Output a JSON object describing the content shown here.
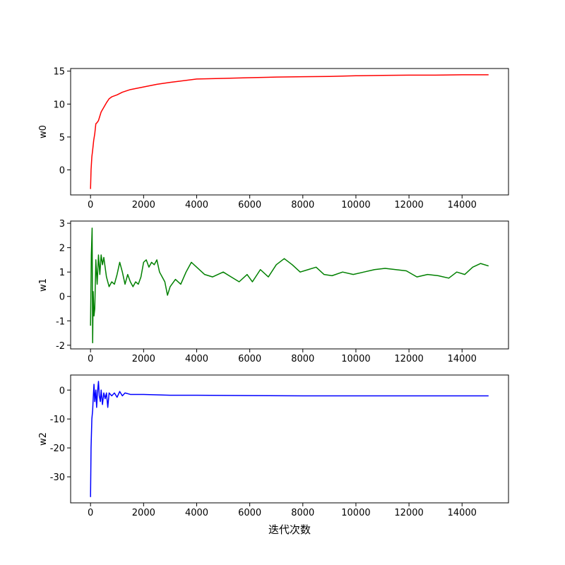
{
  "chart_data": [
    {
      "type": "line",
      "ylabel": "w0",
      "color": "#ff0000",
      "grid": false,
      "x": [
        0,
        20,
        50,
        80,
        120,
        160,
        200,
        250,
        300,
        400,
        500,
        600,
        700,
        800,
        1000,
        1200,
        1500,
        2000,
        2500,
        3000,
        4000,
        5000,
        6000,
        7000,
        8000,
        9000,
        10000,
        11000,
        12000,
        13000,
        14000,
        14999
      ],
      "values": [
        -2.9,
        0,
        2,
        3,
        4.5,
        5.5,
        7,
        7.2,
        7.5,
        8.8,
        9.5,
        10.2,
        10.8,
        11.1,
        11.4,
        11.8,
        12.2,
        12.6,
        13.0,
        13.3,
        13.8,
        13.9,
        14.0,
        14.1,
        14.15,
        14.2,
        14.3,
        14.35,
        14.4,
        14.4,
        14.45,
        14.45
      ],
      "xlim": [
        -750,
        15750
      ],
      "xticks": [
        0,
        2000,
        4000,
        6000,
        8000,
        10000,
        12000,
        14000
      ],
      "ylim": [
        -3.8,
        15.4
      ],
      "yticks": [
        0,
        5,
        10,
        15
      ]
    },
    {
      "type": "line",
      "ylabel": "w1",
      "color": "#008000",
      "grid": false,
      "x": [
        0,
        30,
        60,
        80,
        100,
        130,
        160,
        200,
        250,
        300,
        350,
        400,
        450,
        500,
        600,
        700,
        800,
        900,
        1000,
        1100,
        1200,
        1300,
        1400,
        1500,
        1600,
        1700,
        1800,
        1900,
        2000,
        2100,
        2200,
        2300,
        2400,
        2500,
        2600,
        2700,
        2800,
        2900,
        3000,
        3200,
        3400,
        3600,
        3800,
        4000,
        4300,
        4600,
        5000,
        5300,
        5600,
        5900,
        6100,
        6400,
        6700,
        7000,
        7300,
        7600,
        7900,
        8200,
        8500,
        8800,
        9100,
        9500,
        9900,
        10300,
        10700,
        11100,
        11500,
        11900,
        12300,
        12700,
        13100,
        13500,
        13800,
        14100,
        14400,
        14700,
        14999
      ],
      "values": [
        -1.2,
        1.7,
        2.8,
        -1.9,
        0.2,
        -0.8,
        -0.5,
        1.5,
        0.5,
        1.7,
        0.9,
        1.7,
        1.3,
        1.6,
        0.8,
        0.4,
        0.6,
        0.5,
        0.9,
        1.4,
        1.0,
        0.5,
        0.9,
        0.6,
        0.4,
        0.6,
        0.5,
        0.8,
        1.4,
        1.5,
        1.2,
        1.4,
        1.3,
        1.5,
        1.0,
        0.8,
        0.6,
        0.05,
        0.4,
        0.7,
        0.5,
        1.0,
        1.4,
        1.2,
        0.9,
        0.8,
        1.0,
        0.8,
        0.6,
        0.9,
        0.6,
        1.1,
        0.8,
        1.3,
        1.55,
        1.3,
        1.0,
        1.1,
        1.2,
        0.9,
        0.85,
        1.0,
        0.9,
        1.0,
        1.1,
        1.15,
        1.1,
        1.05,
        0.8,
        0.9,
        0.85,
        0.75,
        1.0,
        0.9,
        1.2,
        1.35,
        1.25
      ],
      "xlim": [
        -750,
        15750
      ],
      "xticks": [
        0,
        2000,
        4000,
        6000,
        8000,
        10000,
        12000,
        14000
      ],
      "ylim": [
        -2.15,
        3.09
      ],
      "yticks": [
        -2,
        -1,
        0,
        1,
        2,
        3
      ]
    },
    {
      "type": "line",
      "ylabel": "w2",
      "xlabel": "迭代次数",
      "color": "#0000ff",
      "grid": false,
      "x": [
        0,
        20,
        50,
        80,
        100,
        130,
        160,
        200,
        230,
        260,
        300,
        330,
        370,
        400,
        450,
        500,
        550,
        600,
        650,
        700,
        800,
        900,
        1000,
        1100,
        1200,
        1300,
        1500,
        2000,
        3000,
        4000,
        6000,
        8000,
        10000,
        12000,
        14000,
        14999
      ],
      "values": [
        -37,
        -20,
        -10,
        -7,
        -3,
        2,
        -4,
        0,
        -6,
        -1,
        3,
        -2,
        -4,
        0,
        -5,
        -1,
        -3,
        -1,
        -6,
        -1,
        -2,
        -1,
        -2.5,
        -0.5,
        -2,
        -1,
        -1.5,
        -1.5,
        -1.8,
        -1.8,
        -1.9,
        -2,
        -2,
        -2,
        -2,
        -2
      ],
      "xlim": [
        -750,
        15750
      ],
      "xticks": [
        0,
        2000,
        4000,
        6000,
        8000,
        10000,
        12000,
        14000
      ],
      "ylim": [
        -39,
        5.2
      ],
      "yticks": [
        -30,
        -20,
        -10,
        0
      ]
    }
  ]
}
